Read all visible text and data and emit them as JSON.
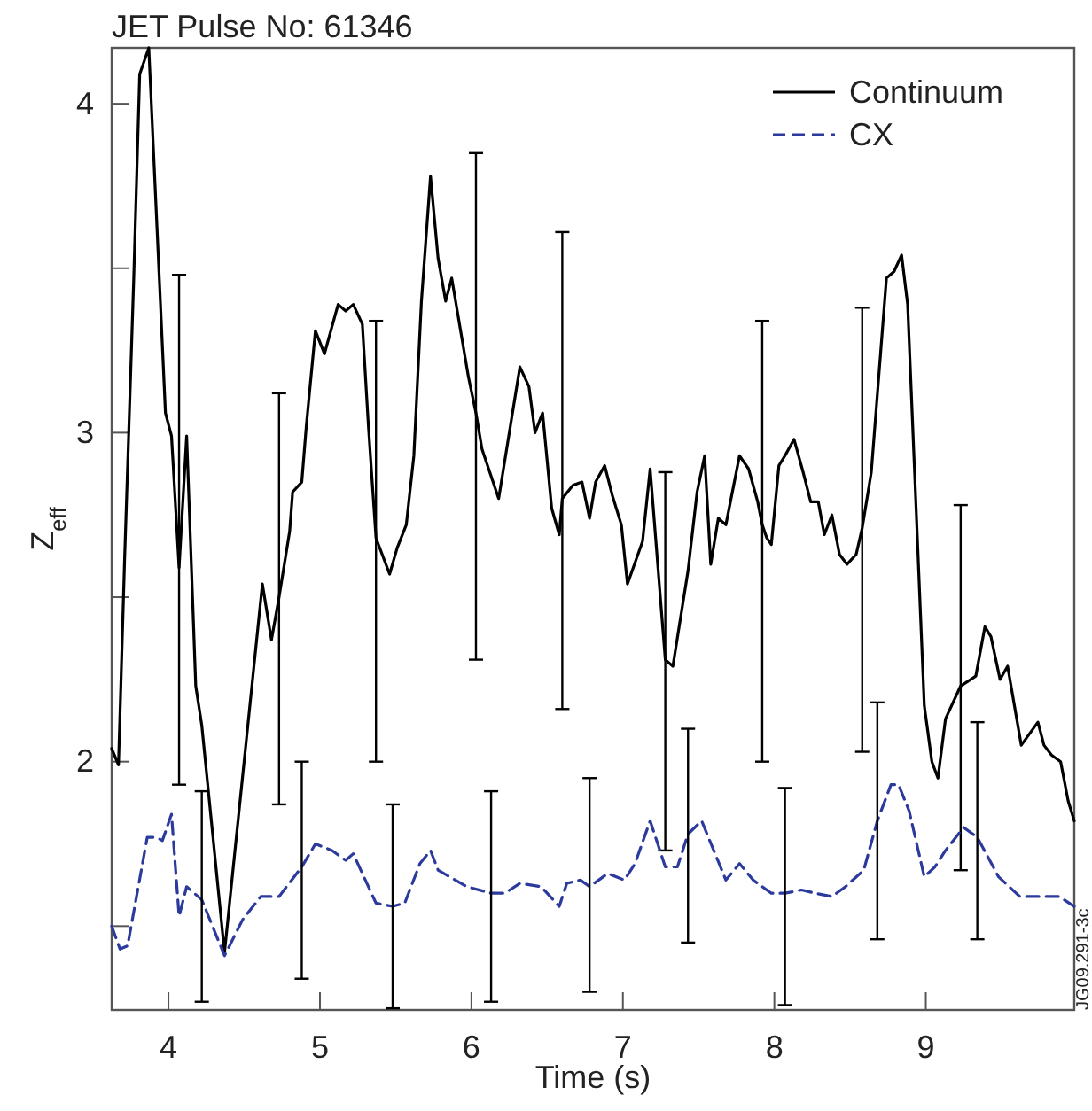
{
  "chart_data": {
    "type": "line",
    "title": "JET Pulse No: 61346",
    "xlabel": "Time (s)",
    "ylabel": "Z$_{eff}$",
    "xlim": [
      3.625,
      9.98
    ],
    "ylim": [
      1.245,
      4.17
    ],
    "xticks": [
      4,
      5,
      6,
      7,
      8,
      9
    ],
    "yticks": [
      {
        "value": 1.5,
        "label": null
      },
      2,
      {
        "value": 2.5,
        "label": null
      },
      3,
      {
        "value": 3.5,
        "label": null
      },
      4
    ],
    "legend": "top right",
    "annotations": [
      "JG09.291-3c"
    ],
    "series": [
      {
        "name": "Continuum",
        "color": "#000000",
        "line_style": "solid",
        "x": [
          3.625,
          3.67,
          3.71,
          3.77,
          3.81,
          3.87,
          3.98,
          4.02,
          4.07,
          4.12,
          4.18,
          4.22,
          4.37,
          4.62,
          4.68,
          4.73,
          4.8,
          4.82,
          4.88,
          4.91,
          4.97,
          5.03,
          5.12,
          5.17,
          5.22,
          5.28,
          5.32,
          5.37,
          5.46,
          5.51,
          5.57,
          5.62,
          5.67,
          5.73,
          5.78,
          5.83,
          5.87,
          5.98,
          6.03,
          6.07,
          6.18,
          6.32,
          6.38,
          6.42,
          6.47,
          6.53,
          6.58,
          6.6,
          6.67,
          6.73,
          6.78,
          6.82,
          6.88,
          6.93,
          6.99,
          7.03,
          7.13,
          7.18,
          7.28,
          7.33,
          7.43,
          7.49,
          7.54,
          7.58,
          7.63,
          7.68,
          7.77,
          7.83,
          7.89,
          7.92,
          7.95,
          7.98,
          8.03,
          8.07,
          8.13,
          8.19,
          8.24,
          8.29,
          8.33,
          8.38,
          8.43,
          8.48,
          8.54,
          8.58,
          8.64,
          8.74,
          8.79,
          8.84,
          8.88,
          8.99,
          9.04,
          9.08,
          9.13,
          9.23,
          9.33,
          9.39,
          9.43,
          9.49,
          9.54,
          9.63,
          9.74,
          9.78,
          9.83,
          9.89,
          9.94,
          9.98
        ],
        "values": [
          2.04,
          1.99,
          2.61,
          3.46,
          4.09,
          4.17,
          3.06,
          2.99,
          2.59,
          2.99,
          2.23,
          2.11,
          1.42,
          2.54,
          2.37,
          2.5,
          2.7,
          2.82,
          2.85,
          3.02,
          3.31,
          3.24,
          3.39,
          3.37,
          3.39,
          3.33,
          3.02,
          2.68,
          2.57,
          2.65,
          2.72,
          2.93,
          3.4,
          3.78,
          3.53,
          3.4,
          3.47,
          3.17,
          3.06,
          2.95,
          2.8,
          3.2,
          3.14,
          3.0,
          3.06,
          2.77,
          2.69,
          2.8,
          2.84,
          2.85,
          2.74,
          2.85,
          2.9,
          2.81,
          2.72,
          2.54,
          2.67,
          2.89,
          2.31,
          2.29,
          2.58,
          2.82,
          2.93,
          2.6,
          2.74,
          2.72,
          2.93,
          2.89,
          2.79,
          2.72,
          2.68,
          2.66,
          2.9,
          2.93,
          2.98,
          2.88,
          2.79,
          2.79,
          2.69,
          2.75,
          2.63,
          2.6,
          2.63,
          2.71,
          2.88,
          3.47,
          3.49,
          3.54,
          3.39,
          2.17,
          2.0,
          1.95,
          2.13,
          2.23,
          2.26,
          2.41,
          2.38,
          2.25,
          2.29,
          2.05,
          2.12,
          2.05,
          2.02,
          2.0,
          1.88,
          1.82
        ],
        "errors": [
          null,
          null,
          null,
          null,
          null,
          null,
          null,
          null,
          [
            1.93,
            3.48
          ],
          null,
          null,
          null,
          null,
          null,
          null,
          [
            1.87,
            3.12
          ],
          null,
          null,
          null,
          null,
          null,
          null,
          null,
          null,
          null,
          null,
          null,
          [
            2.0,
            3.34
          ],
          null,
          null,
          null,
          null,
          null,
          null,
          null,
          null,
          null,
          null,
          [
            2.31,
            3.85
          ],
          null,
          null,
          null,
          null,
          null,
          null,
          null,
          null,
          [
            2.16,
            3.61
          ],
          null,
          null,
          null,
          null,
          null,
          null,
          null,
          null,
          null,
          null,
          [
            1.73,
            2.88
          ],
          null,
          null,
          null,
          null,
          null,
          null,
          null,
          null,
          null,
          null,
          [
            2.0,
            3.34
          ],
          null,
          null,
          null,
          null,
          null,
          null,
          null,
          null,
          null,
          null,
          null,
          null,
          null,
          [
            2.03,
            3.38
          ],
          null,
          null,
          null,
          null,
          null,
          null,
          null,
          null,
          null,
          [
            1.67,
            2.78
          ],
          null,
          null,
          null,
          null,
          null,
          null,
          null,
          null,
          null,
          null,
          null,
          null
        ]
      },
      {
        "name": "CX",
        "color": "#2b3a9c",
        "line_style": "dashed",
        "x": [
          3.625,
          3.68,
          3.73,
          3.86,
          3.92,
          3.96,
          4.02,
          4.07,
          4.12,
          4.22,
          4.37,
          4.49,
          4.61,
          4.73,
          4.88,
          4.97,
          5.08,
          5.17,
          5.22,
          5.37,
          5.48,
          5.56,
          5.66,
          5.73,
          5.78,
          5.97,
          6.13,
          6.22,
          6.32,
          6.46,
          6.58,
          6.63,
          6.72,
          6.78,
          6.9,
          7.01,
          7.08,
          7.18,
          7.28,
          7.36,
          7.43,
          7.52,
          7.68,
          7.77,
          7.86,
          7.98,
          8.07,
          8.18,
          8.27,
          8.38,
          8.47,
          8.59,
          8.68,
          8.77,
          8.82,
          8.89,
          8.99,
          9.06,
          9.13,
          9.25,
          9.34,
          9.48,
          9.62,
          9.76,
          9.88,
          9.98
        ],
        "values": [
          1.5,
          1.43,
          1.44,
          1.77,
          1.77,
          1.76,
          1.84,
          1.53,
          1.62,
          1.58,
          1.41,
          1.52,
          1.59,
          1.59,
          1.68,
          1.75,
          1.73,
          1.7,
          1.72,
          1.57,
          1.56,
          1.57,
          1.69,
          1.73,
          1.67,
          1.62,
          1.6,
          1.6,
          1.63,
          1.62,
          1.56,
          1.63,
          1.64,
          1.62,
          1.66,
          1.64,
          1.69,
          1.82,
          1.68,
          1.68,
          1.78,
          1.82,
          1.64,
          1.69,
          1.64,
          1.6,
          1.6,
          1.61,
          1.6,
          1.59,
          1.62,
          1.67,
          1.82,
          1.93,
          1.93,
          1.85,
          1.65,
          1.68,
          1.73,
          1.8,
          1.77,
          1.65,
          1.59,
          1.59,
          1.59,
          1.56
        ],
        "errors": [
          null,
          null,
          null,
          null,
          null,
          null,
          null,
          null,
          null,
          [
            1.27,
            1.91
          ],
          null,
          null,
          null,
          null,
          [
            1.34,
            2.0
          ],
          null,
          null,
          null,
          null,
          null,
          [
            1.25,
            1.87
          ],
          null,
          null,
          null,
          null,
          null,
          [
            1.27,
            1.91
          ],
          null,
          null,
          null,
          null,
          null,
          null,
          [
            1.3,
            1.95
          ],
          null,
          null,
          null,
          null,
          null,
          null,
          [
            1.45,
            2.1
          ],
          null,
          null,
          null,
          null,
          null,
          [
            1.26,
            1.92
          ],
          null,
          null,
          null,
          null,
          null,
          [
            1.46,
            2.18
          ],
          null,
          null,
          null,
          null,
          null,
          null,
          null,
          [
            1.46,
            2.12
          ],
          null,
          null,
          null,
          null,
          null
        ]
      }
    ]
  }
}
